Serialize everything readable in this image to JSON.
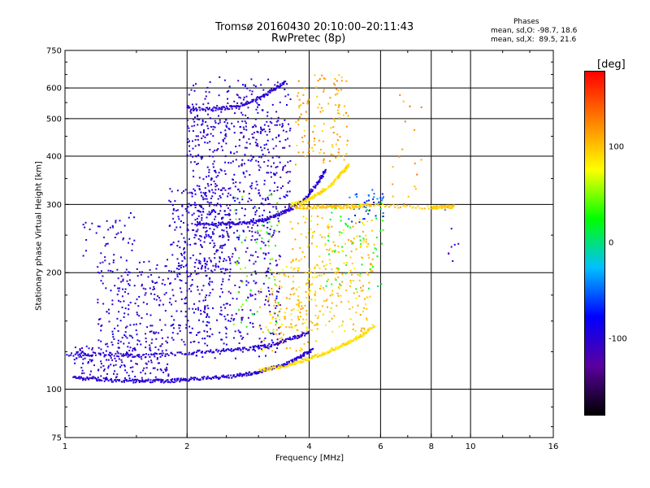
{
  "title": {
    "line1": "Tromsø 20160430 20:10:00–20:11:43",
    "line2": "RwPretec (8p)"
  },
  "stats": {
    "header": "Phases",
    "line_o": "mean, sd,O: -98.7, 18.6",
    "line_x": "mean, sd,X:  89.5, 21.6"
  },
  "colorbar": {
    "label": "[deg]",
    "ticks": [
      {
        "value": 100,
        "label": "100"
      },
      {
        "value": 0,
        "label": "0"
      },
      {
        "value": -100,
        "label": "-100"
      }
    ],
    "range": [
      -180,
      180
    ],
    "colors": [
      "#000000",
      "#5a00a0",
      "#0000ff",
      "#00c0ff",
      "#00ff00",
      "#ffff00",
      "#ff8000",
      "#ff0000"
    ]
  },
  "chart_data": {
    "type": "scatter",
    "xlabel": "Frequency [MHz]",
    "ylabel": "Stationary phase Virtual Height [km]",
    "x_scale": "log",
    "y_scale": "log",
    "xlim": [
      1,
      16
    ],
    "ylim": [
      75,
      750
    ],
    "x_ticks": [
      {
        "value": 1,
        "label": "1",
        "grid": false
      },
      {
        "value": 2,
        "label": "2",
        "grid": true
      },
      {
        "value": 4,
        "label": "4",
        "grid": true
      },
      {
        "value": 6,
        "label": "6",
        "grid": true
      },
      {
        "value": 8,
        "label": "8",
        "grid": true
      },
      {
        "value": 10,
        "label": "10",
        "grid": true
      },
      {
        "value": 16,
        "label": "16",
        "grid": false
      }
    ],
    "y_ticks": [
      {
        "value": 75,
        "label": "75",
        "grid": false
      },
      {
        "value": 100,
        "label": "100",
        "grid": true
      },
      {
        "value": 200,
        "label": "200",
        "grid": true
      },
      {
        "value": 300,
        "label": "300",
        "grid": true
      },
      {
        "value": 400,
        "label": "400",
        "grid": true
      },
      {
        "value": 500,
        "label": "500",
        "grid": true
      },
      {
        "value": 600,
        "label": "600",
        "grid": true
      },
      {
        "value": 750,
        "label": "750",
        "grid": false
      }
    ],
    "traces": [
      {
        "name": "O-mode E-region trace",
        "phase": -100,
        "points": [
          [
            1.05,
            107
          ],
          [
            1.2,
            106
          ],
          [
            1.4,
            105
          ],
          [
            1.6,
            105
          ],
          [
            1.8,
            105
          ],
          [
            2.0,
            106
          ],
          [
            2.3,
            107
          ],
          [
            2.6,
            108
          ],
          [
            2.9,
            110
          ],
          [
            3.2,
            113
          ],
          [
            3.5,
            116
          ],
          [
            3.8,
            121
          ],
          [
            4.1,
            127
          ]
        ]
      },
      {
        "name": "X-mode E-region trace",
        "phase": 90,
        "points": [
          [
            3.0,
            112
          ],
          [
            3.4,
            114
          ],
          [
            3.8,
            118
          ],
          [
            4.2,
            122
          ],
          [
            4.6,
            127
          ],
          [
            5.0,
            132
          ],
          [
            5.4,
            138
          ],
          [
            5.8,
            146
          ]
        ]
      },
      {
        "name": "Lower O trace",
        "phase": -100,
        "points": [
          [
            1.0,
            123
          ],
          [
            1.3,
            123
          ],
          [
            1.6,
            122
          ],
          [
            2.0,
            124
          ],
          [
            2.4,
            126
          ],
          [
            2.8,
            127
          ],
          [
            3.2,
            130
          ],
          [
            3.6,
            135
          ],
          [
            4.0,
            140
          ]
        ]
      },
      {
        "name": "F-region O trace",
        "phase": -100,
        "points": [
          [
            2.1,
            268
          ],
          [
            2.4,
            267
          ],
          [
            2.7,
            268
          ],
          [
            3.0,
            272
          ],
          [
            3.3,
            280
          ],
          [
            3.6,
            292
          ],
          [
            3.9,
            310
          ],
          [
            4.2,
            340
          ],
          [
            4.4,
            370
          ]
        ]
      },
      {
        "name": "F-region X trace",
        "phase": 90,
        "points": [
          [
            3.6,
            300
          ],
          [
            3.9,
            305
          ],
          [
            4.2,
            318
          ],
          [
            4.5,
            335
          ],
          [
            4.8,
            360
          ],
          [
            5.0,
            380
          ]
        ]
      },
      {
        "name": "Multiple hop O trace",
        "phase": -100,
        "points": [
          [
            2.0,
            530
          ],
          [
            2.3,
            528
          ],
          [
            2.6,
            535
          ],
          [
            2.9,
            555
          ],
          [
            3.2,
            585
          ],
          [
            3.5,
            620
          ]
        ]
      },
      {
        "name": "Sporadic 300 km band",
        "phase": 100,
        "points": [
          [
            3.7,
            295
          ],
          [
            4.2,
            296
          ],
          [
            4.7,
            296
          ],
          [
            5.2,
            296
          ],
          [
            5.7,
            298
          ],
          [
            8.0,
            295
          ],
          [
            8.6,
            295
          ],
          [
            9.1,
            296
          ]
        ]
      }
    ],
    "clouds": [
      {
        "x": [
          1.05,
          1.8
        ],
        "y": [
          105,
          130
        ],
        "phase": -100,
        "density": 180
      },
      {
        "x": [
          1.2,
          2.3
        ],
        "y": [
          130,
          220
        ],
        "phase": -100,
        "density": 320
      },
      {
        "x": [
          1.8,
          2.6
        ],
        "y": [
          200,
          330
        ],
        "phase": -100,
        "density": 220
      },
      {
        "x": [
          2.0,
          3.6
        ],
        "y": [
          280,
          500
        ],
        "phase": -100,
        "density": 380
      },
      {
        "x": [
          2.1,
          3.4
        ],
        "y": [
          120,
          280
        ],
        "phase": -100,
        "density": 300
      },
      {
        "x": [
          2.0,
          3.6
        ],
        "y": [
          440,
          640
        ],
        "phase": -100,
        "density": 150
      },
      {
        "x": [
          1.1,
          1.5
        ],
        "y": [
          220,
          290
        ],
        "phase": -100,
        "density": 40
      },
      {
        "x": [
          2.6,
          3.4
        ],
        "y": [
          140,
          330
        ],
        "phase": 40,
        "density": 60
      },
      {
        "x": [
          3.0,
          4.2
        ],
        "y": [
          125,
          220
        ],
        "phase": 100,
        "density": 140
      },
      {
        "x": [
          3.6,
          5.8
        ],
        "y": [
          140,
          280
        ],
        "phase": 100,
        "density": 260
      },
      {
        "x": [
          3.7,
          5.0
        ],
        "y": [
          380,
          650
        ],
        "phase": 110,
        "density": 120
      },
      {
        "x": [
          4.4,
          6.1
        ],
        "y": [
          180,
          310
        ],
        "phase": 20,
        "density": 60
      },
      {
        "x": [
          5.0,
          6.1
        ],
        "y": [
          270,
          330
        ],
        "phase": -60,
        "density": 40
      },
      {
        "x": [
          6.4,
          7.6
        ],
        "y": [
          300,
          600
        ],
        "phase": 120,
        "density": 18
      },
      {
        "x": [
          8.5,
          9.4
        ],
        "y": [
          210,
          330
        ],
        "phase": -110,
        "density": 8
      }
    ]
  }
}
